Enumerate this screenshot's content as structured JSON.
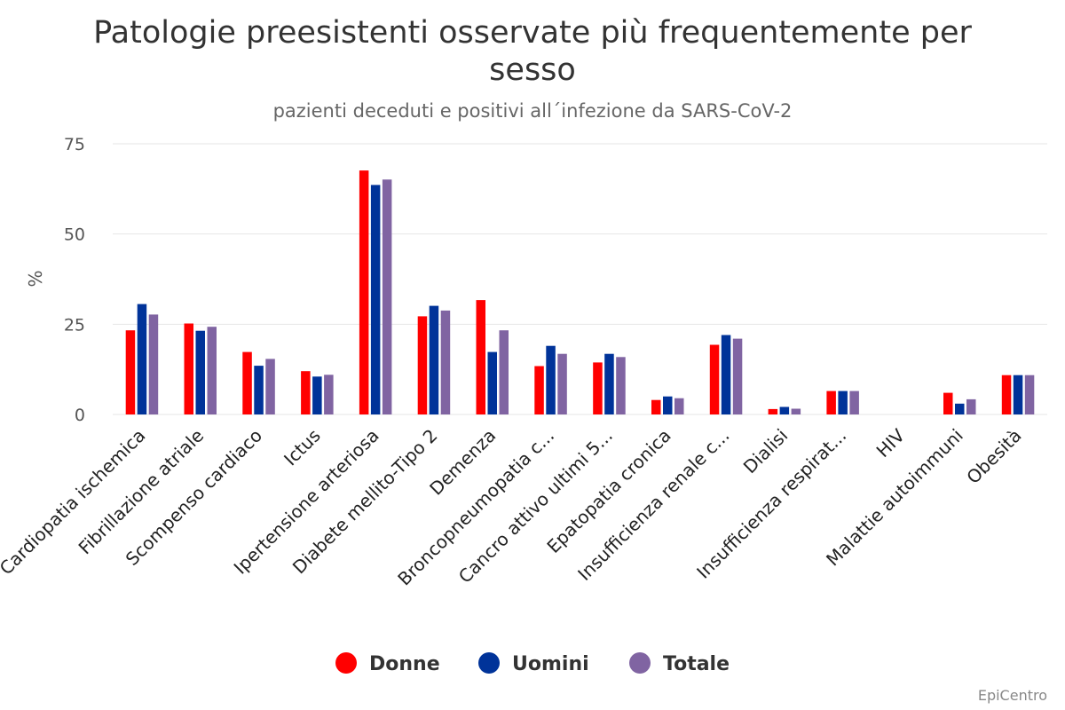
{
  "chart_data": {
    "type": "bar",
    "title": "Patologie preesistenti osservate più frequentemente per sesso",
    "title_lines": [
      "Patologie preesistenti osservate più frequentemente per",
      "sesso"
    ],
    "subtitle": "pazienti deceduti e positivi all´infezione da SARS-CoV-2",
    "ylabel": "%",
    "xlabel": "",
    "ylim": [
      0,
      75
    ],
    "yticks": [
      0,
      25,
      50,
      75
    ],
    "grid": true,
    "legend_position": "bottom-center",
    "categories": [
      "Cardiopatia ischemica",
      "Fibrillazione atriale",
      "Scompenso cardiaco",
      "Ictus",
      "Ipertensione arteriosa",
      "Diabete mellito-Tipo 2",
      "Demenza",
      "Broncopneumopatia c...",
      "Cancro attivo ultimi 5...",
      "Epatopatia cronica",
      "Insufficienza renale c...",
      "Dialisi",
      "Insufficienza respirat...",
      "HIV",
      "Malattie autoimmuni",
      "Obesità"
    ],
    "series": [
      {
        "name": "Donne",
        "color": "#ff0000",
        "values": [
          23.3,
          25.2,
          17.3,
          12.0,
          67.6,
          27.2,
          31.7,
          13.4,
          14.4,
          4.0,
          19.3,
          1.5,
          6.5,
          0.0,
          6.0,
          10.9
        ]
      },
      {
        "name": "Uomini",
        "color": "#003399",
        "values": [
          30.6,
          23.2,
          13.5,
          10.5,
          63.6,
          30.1,
          17.3,
          19.0,
          16.8,
          5.0,
          22.0,
          2.1,
          6.5,
          0.0,
          3.0,
          10.9
        ]
      },
      {
        "name": "Totale",
        "color": "#8064a2",
        "values": [
          27.7,
          24.3,
          15.4,
          11.0,
          65.1,
          28.8,
          23.3,
          16.8,
          15.9,
          4.5,
          21.0,
          1.6,
          6.5,
          0.0,
          4.2,
          10.9
        ]
      }
    ]
  },
  "credit": "EpiCentro"
}
